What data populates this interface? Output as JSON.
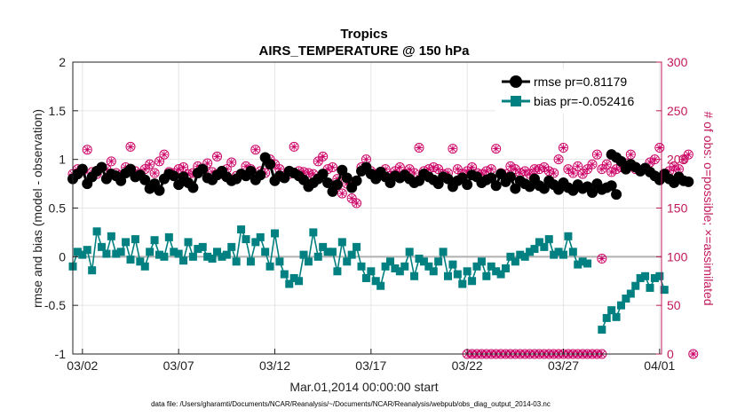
{
  "chart_data": {
    "type": "line",
    "title": "Tropics",
    "subtitle": "AIRS_TEMPERATURE @ 150 hPa",
    "xlabel": "Mar.01,2014 00:00:00 start",
    "ylabel_left": "rmse and bias (model - observation)",
    "ylabel_right": "# of obs: o=possible; ×=assimilated",
    "footnote": "data file: /Users/gharamti/Documents/NCAR/Reanalysis/~/Documents/NCAR/Reanalysis/webpub/obs_diag_output_2014-03.nc",
    "x_start_day": 1.5,
    "x_end_day": 32.1,
    "ylim_left": [
      -1,
      2
    ],
    "ylim_right": [
      0,
      300
    ],
    "yticks_left": [
      "-1",
      "-0.5",
      "0",
      "0.5",
      "1",
      "1.5",
      "2"
    ],
    "yticks_left_values": [
      -1,
      -0.5,
      0,
      0.5,
      1,
      1.5,
      2
    ],
    "yticks_right": [
      "0",
      "50",
      "100",
      "150",
      "200",
      "250",
      "300"
    ],
    "yticks_right_values": [
      0,
      50,
      100,
      150,
      200,
      250,
      300
    ],
    "xticks": [
      {
        "day": 2,
        "label": "03/02"
      },
      {
        "day": 7,
        "label": "03/07"
      },
      {
        "day": 12,
        "label": "03/12"
      },
      {
        "day": 17,
        "label": "03/17"
      },
      {
        "day": 22,
        "label": "03/22"
      },
      {
        "day": 27,
        "label": "03/27"
      },
      {
        "day": 32,
        "label": "04/01"
      }
    ],
    "zero_line": 0,
    "obs_interval_days": 0.25,
    "series": [
      {
        "name": "rmse",
        "legend": "rmse pr=0.81179",
        "color": "#000000",
        "segments": [
          {
            "start_day": 1.5,
            "values": [
              0.8,
              0.85,
              0.9,
              0.75,
              0.82,
              0.88,
              0.92,
              0.8,
              0.85,
              0.83,
              0.78,
              0.86,
              0.9,
              0.82,
              0.84,
              0.79,
              0.7,
              0.75,
              0.68,
              0.8,
              0.85,
              0.83,
              0.74,
              0.82,
              0.76,
              0.71,
              0.86,
              0.9,
              0.81,
              0.79,
              0.84,
              0.88,
              0.82,
              0.78,
              0.8,
              0.85,
              0.83,
              0.88,
              0.79,
              0.84,
              1.02,
              0.95,
              0.78,
              0.83,
              0.81,
              0.88,
              0.86,
              0.83,
              0.79,
              0.72,
              0.76,
              0.8,
              0.85,
              0.76,
              0.67,
              0.74,
              0.89,
              0.81,
              0.71,
              0.78,
              0.88,
              0.92,
              0.85,
              0.8,
              0.87,
              0.82,
              0.76,
              0.83,
              0.81,
              0.84,
              0.8,
              0.76,
              0.78,
              0.85,
              0.82,
              0.79,
              0.75,
              0.82,
              0.8,
              0.72,
              0.78,
              0.81,
              0.74,
              0.84,
              0.82,
              0.76,
              0.79,
              0.81,
              0.73,
              0.85,
              0.77,
              0.82,
              0.7,
              0.78,
              0.75,
              0.72,
              0.8,
              0.73,
              0.7,
              0.78,
              0.74,
              0.69,
              0.76,
              0.71,
              0.68,
              0.74,
              0.7,
              0.72,
              0.66,
              0.75,
              0.69,
              0.71,
              0.73,
              0.64
            ]
          },
          {
            "start_day": 29.5,
            "values": [
              1.05,
              1.02,
              0.98,
              0.9,
              0.95,
              0.92,
              0.88,
              0.91,
              0.87,
              0.83,
              0.79,
              0.85,
              0.8,
              0.76,
              0.82,
              0.78,
              0.77
            ]
          }
        ]
      },
      {
        "name": "bias",
        "legend": "bias pr=-0.052416",
        "color": "#008080",
        "segments": [
          {
            "start_day": 1.5,
            "values": [
              -0.1,
              0.05,
              0.02,
              0.07,
              -0.14,
              0.26,
              0.1,
              0.03,
              0.21,
              0.03,
              0.05,
              0.15,
              -0.03,
              0.18,
              -0.05,
              -0.1,
              0.05,
              0.17,
              0.02,
              0.0,
              0.2,
              0.05,
              0.03,
              -0.04,
              0.15,
              0.0,
              0.08,
              0.1,
              0.0,
              -0.02,
              0.05,
              0.0,
              0.02,
              0.1,
              -0.05,
              0.28,
              0.18,
              -0.05,
              0.15,
              0.2,
              0.05,
              -0.1,
              0.24,
              -0.05,
              -0.18,
              -0.28,
              -0.22,
              -0.25,
              0.02,
              -0.05,
              0.25,
              0.0,
              0.1,
              0.05,
              0.05,
              -0.15,
              0.15,
              -0.05,
              0.02,
              0.1,
              -0.1,
              -0.22,
              -0.15,
              -0.25,
              -0.3,
              -0.1,
              -0.05,
              -0.12,
              -0.15,
              -0.1,
              0.05,
              -0.2,
              -0.02,
              -0.05,
              -0.1,
              -0.15,
              -0.05,
              0.05,
              -0.2,
              -0.08,
              -0.18,
              -0.28,
              -0.15,
              -0.25,
              -0.1,
              -0.05,
              -0.2,
              -0.1,
              -0.15,
              -0.18,
              -0.12,
              0.0,
              -0.05,
              0.02,
              0.0,
              0.05,
              0.08,
              0.15,
              0.1,
              0.18,
              0.02,
              0.05,
              0.02,
              0.21,
              0.05,
              -0.08,
              -0.05,
              -0.07
            ]
          },
          {
            "start_day": 29.0,
            "values": [
              -0.75,
              -0.63,
              -0.55,
              -0.62,
              -0.5,
              -0.43,
              -0.38,
              -0.3,
              -0.22,
              -0.2,
              -0.32,
              -0.22,
              -0.2,
              -0.34
            ]
          }
        ]
      },
      {
        "name": "obs_possible",
        "axis": "right",
        "color": "#cc0066",
        "segments": [
          {
            "start_day": 1.5,
            "values": [
              185,
              190,
              188,
              210,
              187,
              185,
              192,
              190,
              198,
              186,
              184,
              192,
              213,
              188,
              185,
              190,
              195,
              186,
              198,
              205,
              187,
              186,
              190,
              192,
              185,
              186,
              193,
              190,
              196,
              187,
              203,
              185,
              190,
              197,
              183,
              185,
              193,
              190,
              210,
              188,
              186,
              200,
              195,
              190,
              183,
              185,
              213,
              188,
              187,
              186,
              185,
              198,
              203,
              190,
              192,
              180,
              165,
              175,
              160,
              155,
              192,
              200,
              188,
              185,
              187,
              190,
              183,
              188,
              192,
              185,
              190,
              186,
              212,
              188,
              190,
              192,
              190,
              185,
              186,
              211,
              190,
              185,
              188,
              192,
              186,
              185,
              188,
              190,
              211,
              186,
              185,
              193,
              190,
              186,
              188,
              185,
              190,
              190,
              192,
              188,
              186,
              200,
              212,
              190,
              186,
              193,
              185,
              190,
              195,
              205,
              190
            ]
          },
          {
            "start_day": 22.0,
            "values": [
              0,
              0,
              0,
              0,
              0,
              0,
              0,
              0,
              0,
              0,
              0,
              0,
              0,
              0,
              0,
              0,
              0,
              0,
              0,
              0,
              0,
              0,
              0,
              0,
              0,
              0,
              0,
              0,
              0
            ]
          },
          {
            "start_day": 29.0,
            "values": [
              98,
              195,
              187,
              190,
              192,
              196,
              205,
              190,
              188,
              190,
              197,
              200,
              212,
              185,
              188,
              193,
              190,
              200,
              205,
              0
            ]
          }
        ]
      }
    ]
  },
  "legend": {
    "rmse": "rmse pr=0.81179",
    "bias": "bias pr=-0.052416"
  }
}
